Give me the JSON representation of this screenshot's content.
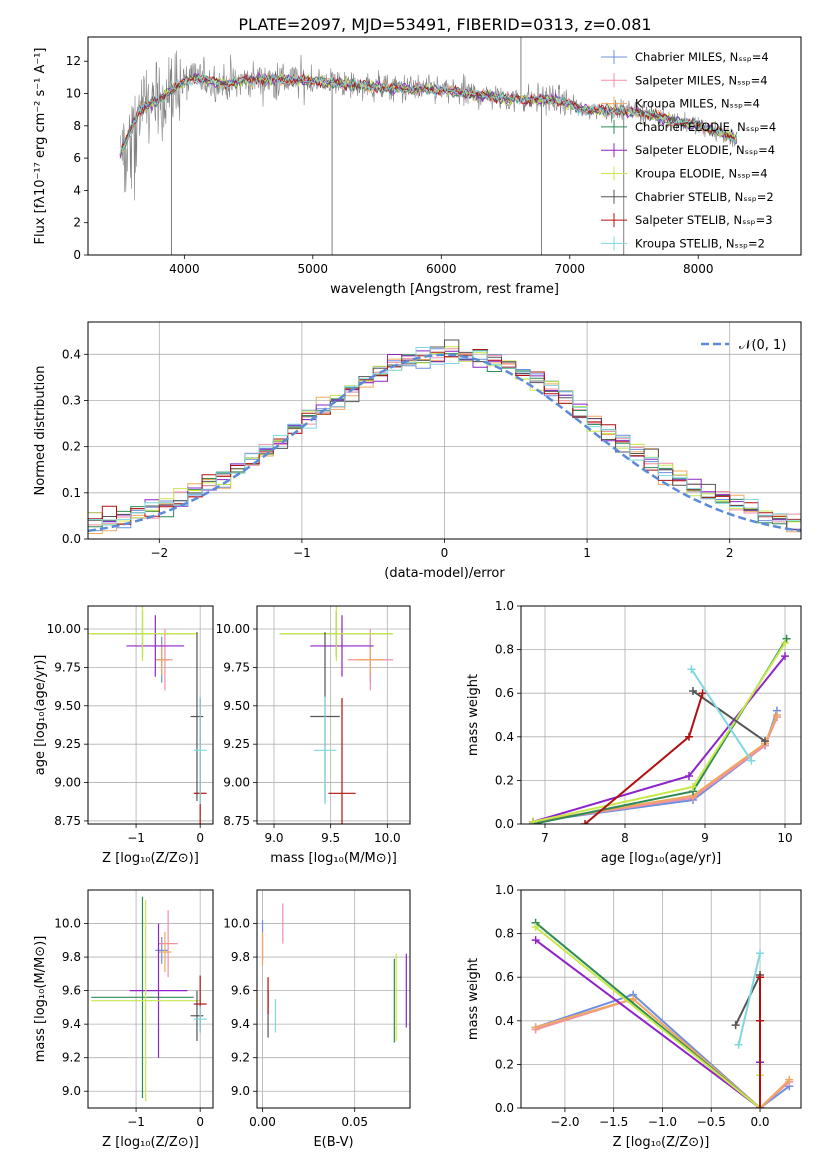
{
  "title": "PLATE=2097, MJD=53491, FIBERID=0313, z=0.081",
  "colors": {
    "chabrier_miles": "#6d8fe0",
    "salpeter_miles": "#f08fa5",
    "kroupa_miles": "#f0a860",
    "chabrier_elodie": "#2e8b57",
    "salpeter_elodie": "#8e24c8",
    "kroupa_elodie": "#c8e84a",
    "chabrier_stelib": "#555555",
    "salpeter_stelib": "#b01010",
    "kroupa_stelib": "#7fd8e0",
    "data": "#808080",
    "gaussian": "#5b8bd8",
    "grid": "#b0b0b0"
  },
  "chart_data": [
    {
      "id": "spectrum",
      "type": "line",
      "xlabel": "wavelength [Angstrom, rest frame]",
      "ylabel": "Flux [fλ10⁻¹⁷ erg cm⁻² s⁻¹ A⁻¹]",
      "xlim": [
        3250,
        8800
      ],
      "ylim": [
        0,
        13.5
      ],
      "xticks": [
        4000,
        5000,
        6000,
        7000,
        8000
      ],
      "yticks": [
        0,
        2,
        4,
        6,
        8,
        10,
        12
      ],
      "grid": false,
      "legend_position": "right",
      "legend": [
        "Chabrier MILES, Nₛₛₚ=4",
        "Salpeter MILES, Nₛₛₚ=4",
        "Kroupa MILES, Nₛₛₚ=4",
        "Chabrier ELODIE, Nₛₛₚ=4",
        "Salpeter ELODIE, Nₛₛₚ=4",
        "Kroupa ELODIE, Nₛₛₚ=4",
        "Chabrier STELIB, Nₛₛₚ=2",
        "Salpeter STELIB, Nₛₛₚ=3",
        "Kroupa STELIB, Nₛₛₚ=2"
      ],
      "continuum": [
        [
          3500,
          6.2
        ],
        [
          3650,
          9.0
        ],
        [
          3800,
          9.6
        ],
        [
          3950,
          10.5
        ],
        [
          4100,
          11.0
        ],
        [
          4300,
          10.6
        ],
        [
          4600,
          10.9
        ],
        [
          5000,
          10.8
        ],
        [
          5500,
          10.4
        ],
        [
          6000,
          10.2
        ],
        [
          6500,
          9.7
        ],
        [
          6900,
          9.6
        ],
        [
          7100,
          9.0
        ],
        [
          7500,
          8.9
        ],
        [
          8000,
          8.0
        ],
        [
          8300,
          7.2
        ]
      ],
      "flux_spikes": [
        {
          "x": 3900,
          "y": 0
        },
        {
          "x": 5150,
          "y": 0
        },
        {
          "x": 6780,
          "y": 0
        },
        {
          "x": 7420,
          "y": 0
        },
        {
          "x": 6620,
          "y": 13.5
        }
      ]
    },
    {
      "id": "residuals",
      "type": "line",
      "xlabel": "(data-model)/error",
      "ylabel": "Normed distribution",
      "xlim": [
        -2.5,
        2.5
      ],
      "ylim": [
        0,
        0.47
      ],
      "xticks": [
        -2,
        -1,
        0,
        1,
        2
      ],
      "yticks": [
        0,
        0.1,
        0.2,
        0.3,
        0.4
      ],
      "grid": true,
      "legend_position": "top-right",
      "legend": [
        "𝒩(0, 1)"
      ],
      "bin_width": 0.1
    },
    {
      "id": "age_vs_Z",
      "type": "scatter",
      "xlabel": "Z [log₁₀(Z/Z⊙)]",
      "ylabel": "age  [log₁₀(age/yr)]",
      "xlim": [
        -1.75,
        0.2
      ],
      "ylim": [
        8.73,
        10.15
      ],
      "xticks": [
        -1,
        0
      ],
      "yticks": [
        8.75,
        9.0,
        9.25,
        9.5,
        9.75,
        10.0
      ],
      "grid": true,
      "points": [
        {
          "c": "chabrier_miles",
          "x": -0.6,
          "xe": 0.1,
          "y": 9.8,
          "ye": 0.15
        },
        {
          "c": "salpeter_miles",
          "x": -0.55,
          "xe": 0.12,
          "y": 9.8,
          "ye": 0.2
        },
        {
          "c": "kroupa_miles",
          "x": -0.6,
          "xe": 0.1,
          "y": 9.8,
          "ye": 0.1
        },
        {
          "c": "chabrier_elodie",
          "x": -0.9,
          "xe": 0.8,
          "y": 9.97,
          "ye": 0.15
        },
        {
          "c": "salpeter_elodie",
          "x": -0.7,
          "xe": 0.45,
          "y": 9.89,
          "ye": 0.2
        },
        {
          "c": "kroupa_elodie",
          "x": -0.9,
          "xe": 0.85,
          "y": 9.97,
          "ye": 0.18
        },
        {
          "c": "chabrier_stelib",
          "x": -0.05,
          "xe": 0.1,
          "y": 9.43,
          "ye": 0.55
        },
        {
          "c": "salpeter_stelib",
          "x": 0.0,
          "xe": 0.1,
          "y": 8.93,
          "ye": 0.62
        },
        {
          "c": "kroupa_stelib",
          "x": 0.0,
          "xe": 0.1,
          "y": 9.21,
          "ye": 0.35
        }
      ]
    },
    {
      "id": "age_vs_mass",
      "type": "scatter",
      "xlabel": "mass [log₁₀(M/M⊙)]",
      "ylabel": "",
      "xlim": [
        8.85,
        10.2
      ],
      "ylim": [
        8.73,
        10.15
      ],
      "xticks": [
        9.0,
        9.5,
        10.0
      ],
      "yticks": [
        8.75,
        9.0,
        9.25,
        9.5,
        9.75,
        10.0
      ],
      "grid": true,
      "points": [
        {
          "c": "chabrier_miles",
          "x": 9.85,
          "xe": 0.1,
          "y": 9.8,
          "ye": 0.15
        },
        {
          "c": "salpeter_miles",
          "x": 9.85,
          "xe": 0.2,
          "y": 9.8,
          "ye": 0.2
        },
        {
          "c": "kroupa_miles",
          "x": 9.85,
          "xe": 0.12,
          "y": 9.8,
          "ye": 0.1
        },
        {
          "c": "chabrier_elodie",
          "x": 9.55,
          "xe": 0.5,
          "y": 9.97,
          "ye": 0.15
        },
        {
          "c": "salpeter_elodie",
          "x": 9.6,
          "xe": 0.28,
          "y": 9.89,
          "ye": 0.2
        },
        {
          "c": "kroupa_elodie",
          "x": 9.55,
          "xe": 0.5,
          "y": 9.97,
          "ye": 0.18
        },
        {
          "c": "chabrier_stelib",
          "x": 9.45,
          "xe": 0.13,
          "y": 9.43,
          "ye": 0.55
        },
        {
          "c": "salpeter_stelib",
          "x": 9.6,
          "xe": 0.12,
          "y": 8.93,
          "ye": 0.62
        },
        {
          "c": "kroupa_stelib",
          "x": 9.45,
          "xe": 0.1,
          "y": 9.21,
          "ye": 0.35
        }
      ]
    },
    {
      "id": "weight_vs_age",
      "type": "line",
      "xlabel": "age  [log₁₀(age/yr)]",
      "ylabel": "mass weight",
      "xlim": [
        6.7,
        10.2
      ],
      "ylim": [
        0,
        1.0
      ],
      "xticks": [
        7,
        8,
        9,
        10
      ],
      "yticks": [
        0.0,
        0.2,
        0.4,
        0.6,
        0.8,
        1.0
      ],
      "grid": true,
      "series": [
        {
          "c": "chabrier_miles",
          "x": [
            6.85,
            8.85,
            9.75,
            9.9
          ],
          "y": [
            0.01,
            0.11,
            0.36,
            0.52
          ]
        },
        {
          "c": "salpeter_miles",
          "x": [
            6.85,
            8.85,
            9.75,
            9.9
          ],
          "y": [
            0.01,
            0.12,
            0.36,
            0.49
          ]
        },
        {
          "c": "kroupa_miles",
          "x": [
            6.85,
            8.85,
            9.75,
            9.9
          ],
          "y": [
            0.01,
            0.13,
            0.37,
            0.5
          ]
        },
        {
          "c": "chabrier_elodie",
          "x": [
            6.85,
            8.85,
            10.02
          ],
          "y": [
            0.0,
            0.15,
            0.85
          ]
        },
        {
          "c": "salpeter_elodie",
          "x": [
            6.85,
            8.8,
            10.0
          ],
          "y": [
            0.01,
            0.22,
            0.77
          ]
        },
        {
          "c": "kroupa_elodie",
          "x": [
            6.85,
            8.85,
            10.0
          ],
          "y": [
            0.01,
            0.17,
            0.83
          ]
        },
        {
          "c": "chabrier_stelib",
          "x": [
            8.85,
            9.75
          ],
          "y": [
            0.61,
            0.38
          ]
        },
        {
          "c": "salpeter_stelib",
          "x": [
            7.5,
            8.8,
            8.97
          ],
          "y": [
            0.0,
            0.4,
            0.6
          ]
        },
        {
          "c": "kroupa_stelib",
          "x": [
            8.83,
            9.58
          ],
          "y": [
            0.71,
            0.29
          ]
        }
      ]
    },
    {
      "id": "mass_vs_Z",
      "type": "scatter",
      "xlabel": "Z [log₁₀(Z/Z⊙)]",
      "ylabel": "mass [log₁₀(M/M⊙)]",
      "xlim": [
        -1.75,
        0.2
      ],
      "ylim": [
        8.9,
        10.2
      ],
      "xticks": [
        -1,
        0
      ],
      "yticks": [
        9.0,
        9.2,
        9.4,
        9.6,
        9.8,
        10.0
      ],
      "grid": true,
      "points": [
        {
          "c": "chabrier_miles",
          "x": -0.6,
          "xe": 0.1,
          "y": 9.84,
          "ye": 0.08
        },
        {
          "c": "salpeter_miles",
          "x": -0.5,
          "xe": 0.15,
          "y": 9.88,
          "ye": 0.2
        },
        {
          "c": "kroupa_miles",
          "x": -0.55,
          "xe": 0.1,
          "y": 9.83,
          "ye": 0.12
        },
        {
          "c": "chabrier_elodie",
          "x": -0.9,
          "xe": 0.8,
          "y": 9.56,
          "ye": 0.6
        },
        {
          "c": "salpeter_elodie",
          "x": -0.65,
          "xe": 0.45,
          "y": 9.6,
          "ye": 0.4
        },
        {
          "c": "kroupa_elodie",
          "x": -0.85,
          "xe": 0.85,
          "y": 9.54,
          "ye": 0.6
        },
        {
          "c": "chabrier_stelib",
          "x": -0.05,
          "xe": 0.1,
          "y": 9.45,
          "ye": 0.15
        },
        {
          "c": "salpeter_stelib",
          "x": 0.0,
          "xe": 0.1,
          "y": 9.52,
          "ye": 0.17
        },
        {
          "c": "kroupa_stelib",
          "x": 0.0,
          "xe": 0.1,
          "y": 9.43,
          "ye": 0.08
        }
      ]
    },
    {
      "id": "mass_vs_ebv",
      "type": "scatter",
      "xlabel": "E(B-V)",
      "ylabel": "",
      "xlim": [
        -0.003,
        0.08
      ],
      "ylim": [
        8.9,
        10.2
      ],
      "xticks": [
        0.0,
        0.05
      ],
      "yticks": [
        9.0,
        9.2,
        9.4,
        9.6,
        9.8,
        10.0
      ],
      "grid": true,
      "points": [
        {
          "c": "chabrier_miles",
          "x": 0.0,
          "xe": 0,
          "y": 9.9,
          "ye": 0.12
        },
        {
          "c": "salpeter_miles",
          "x": 0.011,
          "xe": 0,
          "y": 10.0,
          "ye": 0.12
        },
        {
          "c": "kroupa_miles",
          "x": 0.0,
          "xe": 0,
          "y": 9.85,
          "ye": 0.1
        },
        {
          "c": "chabrier_elodie",
          "x": 0.0715,
          "xe": 0,
          "y": 9.54,
          "ye": 0.25
        },
        {
          "c": "salpeter_elodie",
          "x": 0.078,
          "xe": 0,
          "y": 9.6,
          "ye": 0.22
        },
        {
          "c": "kroupa_elodie",
          "x": 0.0725,
          "xe": 0,
          "y": 9.56,
          "ye": 0.26
        },
        {
          "c": "chabrier_stelib",
          "x": 0.003,
          "xe": 0,
          "y": 9.46,
          "ye": 0.14
        },
        {
          "c": "salpeter_stelib",
          "x": 0.003,
          "xe": 0,
          "y": 9.57,
          "ye": 0.11
        },
        {
          "c": "kroupa_stelib",
          "x": 0.007,
          "xe": 0,
          "y": 9.45,
          "ye": 0.1
        }
      ]
    },
    {
      "id": "weight_vs_Z",
      "type": "line",
      "xlabel": "Z [log₁₀(Z/Z⊙)]",
      "ylabel": "mass weight",
      "xlim": [
        -2.45,
        0.42
      ],
      "ylim": [
        0,
        1.0
      ],
      "xticks": [
        -2.0,
        -1.5,
        -1.0,
        -0.5,
        0.0
      ],
      "yticks": [
        0.0,
        0.2,
        0.4,
        0.6,
        0.8,
        1.0
      ],
      "grid": true,
      "series": [
        {
          "c": "chabrier_miles",
          "x": [
            -2.3,
            -1.3,
            0.0,
            0.3
          ],
          "y": [
            0.37,
            0.52,
            0.0,
            0.1
          ]
        },
        {
          "c": "salpeter_miles",
          "x": [
            -2.3,
            -1.3,
            0.0,
            0.3
          ],
          "y": [
            0.36,
            0.5,
            0.0,
            0.12
          ]
        },
        {
          "c": "kroupa_miles",
          "x": [
            -2.3,
            -1.3,
            0.0,
            0.3
          ],
          "y": [
            0.37,
            0.5,
            0.0,
            0.13
          ]
        },
        {
          "c": "chabrier_elodie",
          "x": [
            -2.3,
            0.0
          ],
          "y": [
            0.85,
            0.0
          ]
        },
        {
          "c": "salpeter_elodie",
          "x": [
            -2.3,
            0.0,
            0.0
          ],
          "y": [
            0.77,
            0.0,
            0.21
          ]
        },
        {
          "c": "kroupa_elodie",
          "x": [
            -2.3,
            0.0,
            0.0
          ],
          "y": [
            0.83,
            0.0,
            0.15
          ]
        },
        {
          "c": "chabrier_stelib",
          "x": [
            -0.25,
            0.0
          ],
          "y": [
            0.38,
            0.61
          ]
        },
        {
          "c": "salpeter_stelib",
          "x": [
            0.0,
            0.0,
            0.0
          ],
          "y": [
            0.0,
            0.4,
            0.6
          ]
        },
        {
          "c": "kroupa_stelib",
          "x": [
            -0.22,
            0.0
          ],
          "y": [
            0.29,
            0.71
          ]
        }
      ]
    }
  ]
}
